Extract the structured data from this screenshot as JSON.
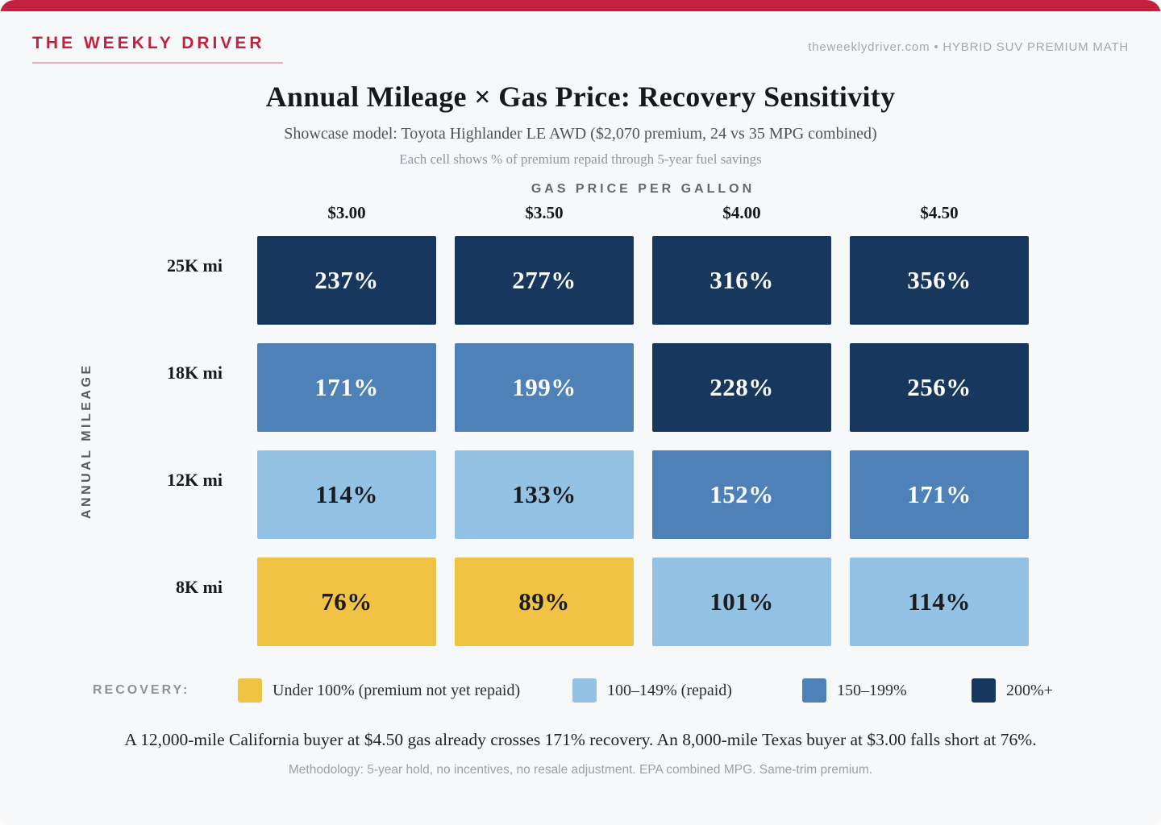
{
  "brand": {
    "name": "THE WEEKLY DRIVER",
    "tagline": "theweeklydriver.com • HYBRID SUV PREMIUM MATH"
  },
  "title": "Annual Mileage × Gas Price: Recovery Sensitivity",
  "subtitle": "Showcase model: Toyota Highlander LE AWD ($2,070 premium, 24 vs 35 MPG combined)",
  "subtitle2": "Each cell shows % of premium repaid through 5-year fuel savings",
  "chart_data": {
    "type": "heatmap",
    "x_axis_label": "GAS PRICE PER GALLON",
    "y_axis_label": "ANNUAL MILEAGE",
    "columns": [
      "$3.00",
      "$3.50",
      "$4.00",
      "$4.50"
    ],
    "rows": [
      "25K mi",
      "18K mi",
      "12K mi",
      "8K mi"
    ],
    "values": [
      [
        "237%",
        "277%",
        "316%",
        "356%"
      ],
      [
        "171%",
        "199%",
        "228%",
        "256%"
      ],
      [
        "114%",
        "133%",
        "152%",
        "171%"
      ],
      [
        "76%",
        "89%",
        "101%",
        "114%"
      ]
    ],
    "values_numeric": [
      [
        237,
        277,
        316,
        356
      ],
      [
        171,
        199,
        228,
        256
      ],
      [
        114,
        133,
        152,
        171
      ],
      [
        76,
        89,
        101,
        114
      ]
    ],
    "tiers": [
      [
        "t4",
        "t4",
        "t4",
        "t4"
      ],
      [
        "t3",
        "t3",
        "t4",
        "t4"
      ],
      [
        "t2",
        "t2",
        "t3",
        "t3"
      ],
      [
        "t1",
        "t1",
        "t2",
        "t2"
      ]
    ],
    "tier_colors": {
      "t1": "#F1C345",
      "t2": "#94C2E5",
      "t3": "#4D81B7",
      "t4": "#17375E"
    },
    "tier_text_colors": {
      "t1": "#1A1C20",
      "t2": "#1A1C20",
      "t3": "#FFFFFF",
      "t4": "#FFFFFF"
    },
    "legend_title": "RECOVERY:",
    "legend": [
      {
        "label": "Under 100% (premium not yet repaid)",
        "tier": "t1"
      },
      {
        "label": "100–149% (repaid)",
        "tier": "t2"
      },
      {
        "label": "150–199%",
        "tier": "t3"
      },
      {
        "label": "200%+",
        "tier": "t4"
      }
    ],
    "legend_position": "bottom"
  },
  "footer": {
    "callout": "A 12,000-mile California buyer at $4.50 gas already crosses 171% recovery. An 8,000-mile Texas buyer at $3.00 falls short at 76%.",
    "methodology": "Methodology: 5-year hold, no incentives, no resale adjustment. EPA combined MPG. Same-trim premium."
  },
  "colors": {
    "accent_red": "#C5203E",
    "background": "#F7F8FA"
  }
}
